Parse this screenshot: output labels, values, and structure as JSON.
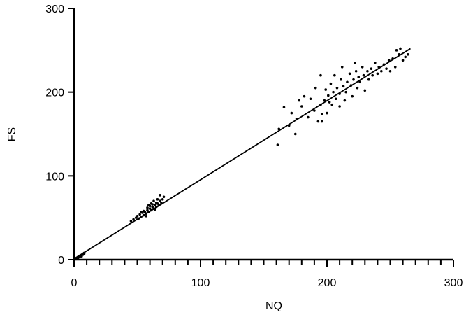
{
  "chart_data": {
    "type": "scatter",
    "xlabel": "NQ",
    "ylabel": "FS",
    "xlim": [
      0,
      300
    ],
    "ylim": [
      0,
      300
    ],
    "xticks": [
      0,
      100,
      200,
      300
    ],
    "yticks": [
      0,
      100,
      200,
      300
    ],
    "xminor_ticks": [
      10,
      20,
      30,
      40,
      50,
      60,
      70,
      80,
      90,
      110,
      120,
      130,
      140,
      150,
      160,
      170,
      180,
      190,
      210,
      220,
      230,
      240,
      250,
      260,
      270,
      280,
      290
    ],
    "color": "#000000",
    "x": [
      1,
      2,
      3,
      4,
      5,
      6,
      7,
      8,
      3,
      5,
      2,
      6,
      7,
      4,
      8,
      45,
      47,
      49,
      50,
      51,
      52,
      53,
      54,
      55,
      56,
      57,
      58,
      58,
      59,
      60,
      60,
      61,
      62,
      62,
      63,
      64,
      65,
      65,
      66,
      67,
      68,
      69,
      70,
      68,
      71,
      66,
      55,
      57,
      53,
      59,
      61,
      63,
      64,
      161,
      162,
      166,
      170,
      172,
      175,
      176,
      180,
      182,
      185,
      187,
      190,
      191,
      193,
      195,
      196,
      198,
      199,
      200,
      201,
      203,
      204,
      205,
      206,
      207,
      208,
      210,
      211,
      212,
      213,
      215,
      216,
      218,
      219,
      220,
      221,
      223,
      224,
      225,
      226,
      228,
      229,
      230,
      232,
      233,
      235,
      236,
      238,
      240,
      241,
      243,
      245,
      247,
      249,
      250,
      252,
      254,
      255,
      257,
      258,
      260,
      262,
      264,
      210,
      196,
      202,
      214,
      222,
      195,
      178
    ],
    "y": [
      1,
      2,
      2,
      3,
      4,
      5,
      6,
      7,
      3,
      5,
      1,
      4,
      7,
      4,
      8,
      46,
      48,
      50,
      52,
      49,
      54,
      51,
      56,
      53,
      57,
      55,
      59,
      62,
      57,
      61,
      64,
      59,
      63,
      66,
      61,
      65,
      63,
      68,
      67,
      65,
      70,
      68,
      72,
      77,
      75,
      72,
      58,
      52,
      57,
      65,
      67,
      70,
      60,
      137,
      156,
      182,
      160,
      175,
      150,
      168,
      183,
      195,
      170,
      192,
      178,
      205,
      165,
      185,
      174,
      190,
      203,
      175,
      196,
      210,
      185,
      200,
      220,
      192,
      205,
      198,
      215,
      230,
      207,
      200,
      212,
      222,
      208,
      195,
      215,
      225,
      205,
      218,
      212,
      230,
      220,
      202,
      225,
      215,
      228,
      220,
      235,
      222,
      230,
      225,
      233,
      228,
      238,
      225,
      240,
      230,
      250,
      245,
      252,
      238,
      242,
      245,
      183,
      165,
      188,
      190,
      235,
      220,
      190
    ],
    "fit_line": {
      "x": [
        0,
        266
      ],
      "y": [
        1,
        252
      ]
    }
  }
}
